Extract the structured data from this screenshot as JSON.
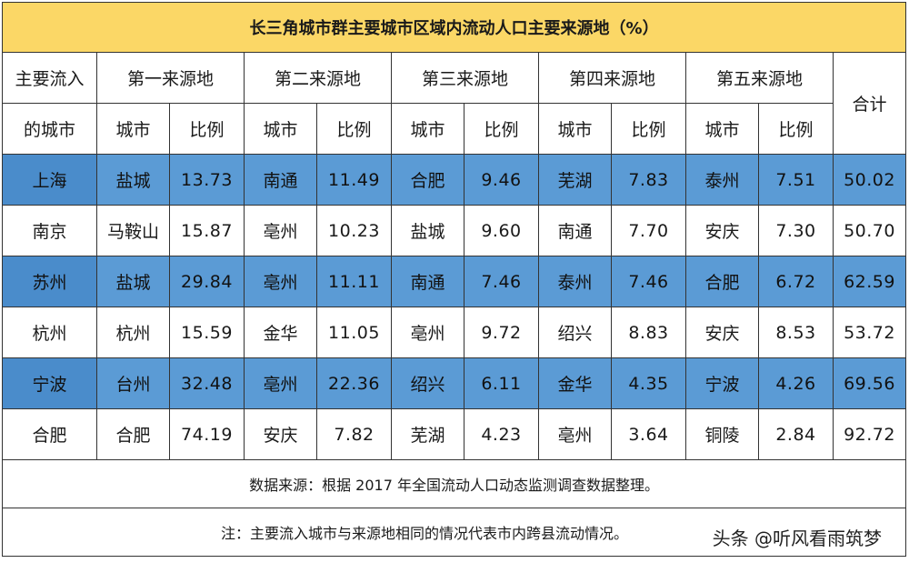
{
  "title": "长三角城市群主要城市区域内流动人口主要来源地（%）",
  "headers": {
    "main_city_top": "主要流入",
    "main_city_bottom": "的城市",
    "sources": [
      "第一来源地",
      "第二来源地",
      "第三来源地",
      "第四来源地",
      "第五来源地"
    ],
    "city": "城市",
    "ratio": "比例",
    "total": "合计"
  },
  "rows": [
    {
      "city": "上海",
      "src": [
        [
          "盐城",
          "13.73"
        ],
        [
          "南通",
          "11.49"
        ],
        [
          "合肥",
          "9.46"
        ],
        [
          "芜湖",
          "7.83"
        ],
        [
          "泰州",
          "7.51"
        ]
      ],
      "total": "50.02"
    },
    {
      "city": "南京",
      "src": [
        [
          "马鞍山",
          "15.87"
        ],
        [
          "亳州",
          "10.23"
        ],
        [
          "盐城",
          "9.60"
        ],
        [
          "南通",
          "7.70"
        ],
        [
          "安庆",
          "7.30"
        ]
      ],
      "total": "50.70"
    },
    {
      "city": "苏州",
      "src": [
        [
          "盐城",
          "29.84"
        ],
        [
          "亳州",
          "11.11"
        ],
        [
          "南通",
          "7.46"
        ],
        [
          "泰州",
          "7.46"
        ],
        [
          "合肥",
          "6.72"
        ]
      ],
      "total": "62.59"
    },
    {
      "city": "杭州",
      "src": [
        [
          "杭州",
          "15.59"
        ],
        [
          "金华",
          "11.05"
        ],
        [
          "亳州",
          "9.72"
        ],
        [
          "绍兴",
          "8.83"
        ],
        [
          "安庆",
          "8.53"
        ]
      ],
      "total": "53.72"
    },
    {
      "city": "宁波",
      "src": [
        [
          "台州",
          "32.48"
        ],
        [
          "亳州",
          "22.36"
        ],
        [
          "绍兴",
          "6.11"
        ],
        [
          "金华",
          "4.35"
        ],
        [
          "宁波",
          "4.26"
        ]
      ],
      "total": "69.56"
    },
    {
      "city": "合肥",
      "src": [
        [
          "合肥",
          "74.19"
        ],
        [
          "安庆",
          "7.82"
        ],
        [
          "芜湖",
          "4.23"
        ],
        [
          "亳州",
          "3.64"
        ],
        [
          "铜陵",
          "2.84"
        ]
      ],
      "total": "92.72"
    }
  ],
  "source_note": "数据来源：根据 2017 年全国流动人口动态监测调查数据整理。",
  "note": "注：主要流入城市与来源地相同的情况代表市内跨县流动情况。",
  "watermark": "头条 @听风看雨筑梦",
  "colors": {
    "header_bg": "#fbd766",
    "band_blue": "#5b9bd5",
    "white": "#ffffff"
  }
}
